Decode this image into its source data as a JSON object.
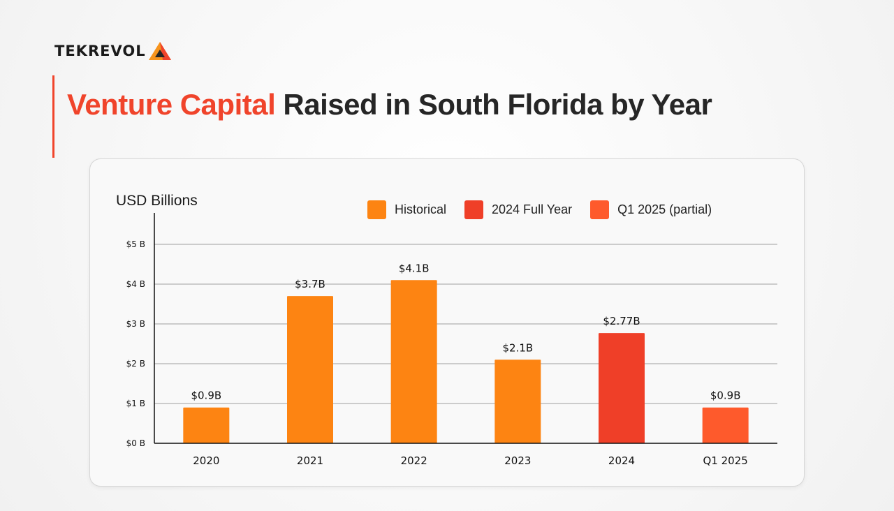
{
  "brand": {
    "name": "TEKREVOL",
    "mark_colors": [
      "#f7941d",
      "#f0442b",
      "#262626"
    ]
  },
  "header": {
    "title_accent": "Venture Capital",
    "title_rest": " Raised in South Florida by Year"
  },
  "colors": {
    "historical": "#fd8412",
    "full_year": "#ef3f28",
    "partial": "#fe5a2c",
    "accent": "#f0442b"
  },
  "chart_data": {
    "type": "bar",
    "ylabel": "USD Billions",
    "xlabel": "",
    "ylim": [
      0,
      5
    ],
    "yticks": [
      0,
      1,
      2,
      3,
      4,
      5
    ],
    "ytick_labels": [
      "$0 B",
      "$1 B",
      "$2 B",
      "$3 B",
      "$4 B",
      "$5 B"
    ],
    "grid": true,
    "legend_position": "top-right",
    "categories": [
      "2020",
      "2021",
      "2022",
      "2023",
      "2024",
      "Q1 2025"
    ],
    "values": [
      0.9,
      3.7,
      4.1,
      2.1,
      2.77,
      0.9
    ],
    "data_labels": [
      "$0.9B",
      "$3.7B",
      "$4.1B",
      "$2.1B",
      "$2.77B",
      "$0.9B"
    ],
    "bar_groups": [
      "historical",
      "historical",
      "historical",
      "historical",
      "full_year",
      "partial"
    ],
    "legend": [
      {
        "key": "historical",
        "label": "Historical"
      },
      {
        "key": "full_year",
        "label": "2024 Full Year"
      },
      {
        "key": "partial",
        "label": "Q1 2025 (partial)"
      }
    ]
  }
}
